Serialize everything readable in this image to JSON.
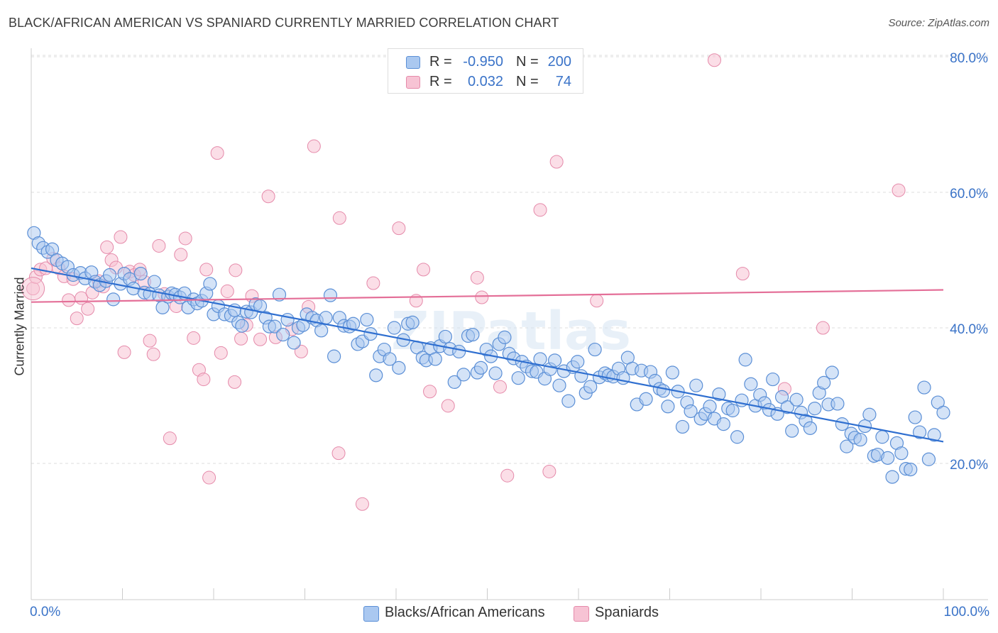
{
  "title": "BLACK/AFRICAN AMERICAN VS SPANIARD CURRENTLY MARRIED CORRELATION CHART",
  "source": "Source: ZipAtlas.com",
  "watermark": "ZIPatlas",
  "legend": {
    "rows": [
      {
        "r_label": "R =",
        "r_value": "-0.950",
        "n_label": "N =",
        "n_value": "200"
      },
      {
        "r_label": "R =",
        "r_value": "0.032",
        "n_label": "N =",
        "n_value": "74"
      }
    ]
  },
  "bottom_legend": [
    "Blacks/African Americans",
    "Spaniards"
  ],
  "x_tick_min": "0.0%",
  "x_tick_max": "100.0%",
  "colors": {
    "blue_fill": "#aac8f0",
    "blue_stroke": "#5b8fd6",
    "blue_line": "#2f6fd0",
    "pink_fill": "#f7c3d4",
    "pink_stroke": "#e58aaa",
    "pink_line": "#e46f98",
    "axis_text": "#3a73c8",
    "grid": "#dddddd"
  },
  "chart_data": {
    "type": "scatter",
    "title": "BLACK/AFRICAN AMERICAN VS SPANIARD CURRENTLY MARRIED CORRELATION CHART",
    "xlabel": "",
    "ylabel": "Currently Married",
    "xlim": [
      0,
      100
    ],
    "ylim": [
      0,
      85
    ],
    "y_ticks": [
      20,
      40,
      60,
      80
    ],
    "y_tick_labels": [
      "20.0%",
      "40.0%",
      "60.0%",
      "80.0%"
    ],
    "x_tick_labels": [
      "0.0%",
      "100.0%"
    ],
    "grid": true,
    "legend_position": "top-center",
    "series": [
      {
        "name": "Blacks/African Americans",
        "r": -0.95,
        "n": 200,
        "trend": {
          "x": [
            0,
            100
          ],
          "y": [
            48.8,
            23.2
          ]
        },
        "points": [
          [
            0.3,
            54.0
          ],
          [
            0.8,
            52.5
          ],
          [
            1.3,
            51.8
          ],
          [
            1.8,
            51.2
          ],
          [
            2.3,
            51.6
          ],
          [
            2.8,
            50.0
          ],
          [
            3.4,
            49.5
          ],
          [
            4.0,
            49.0
          ],
          [
            4.6,
            47.8
          ],
          [
            5.4,
            48.1
          ],
          [
            5.9,
            47.3
          ],
          [
            6.6,
            48.2
          ],
          [
            7.0,
            46.8
          ],
          [
            7.5,
            46.3
          ],
          [
            8.2,
            46.9
          ],
          [
            8.6,
            47.8
          ],
          [
            9.0,
            44.2
          ],
          [
            9.8,
            46.5
          ],
          [
            10.2,
            48.0
          ],
          [
            10.8,
            47.2
          ],
          [
            11.2,
            45.8
          ],
          [
            12.0,
            48.0
          ],
          [
            12.4,
            45.2
          ],
          [
            13.0,
            45.0
          ],
          [
            13.5,
            46.8
          ],
          [
            14.0,
            44.8
          ],
          [
            14.4,
            43.0
          ],
          [
            15.0,
            44.6
          ],
          [
            15.4,
            45.1
          ],
          [
            15.8,
            44.9
          ],
          [
            16.3,
            44.5
          ],
          [
            16.8,
            45.1
          ],
          [
            17.2,
            43.0
          ],
          [
            17.8,
            44.2
          ],
          [
            18.2,
            43.6
          ],
          [
            18.7,
            44.0
          ],
          [
            19.2,
            45.1
          ],
          [
            19.6,
            46.5
          ],
          [
            20.0,
            42.0
          ],
          [
            20.5,
            43.2
          ],
          [
            21.2,
            42.0
          ],
          [
            21.9,
            41.8
          ],
          [
            22.3,
            42.6
          ],
          [
            22.7,
            40.8
          ],
          [
            23.1,
            40.3
          ],
          [
            23.6,
            42.4
          ],
          [
            24.1,
            42.3
          ],
          [
            24.6,
            43.5
          ],
          [
            25.1,
            43.2
          ],
          [
            25.7,
            41.5
          ],
          [
            26.1,
            40.2
          ],
          [
            26.7,
            40.2
          ],
          [
            27.2,
            44.9
          ],
          [
            27.6,
            39.0
          ],
          [
            28.1,
            41.2
          ],
          [
            28.8,
            37.8
          ],
          [
            29.3,
            40.0
          ],
          [
            29.8,
            40.4
          ],
          [
            30.2,
            42.0
          ],
          [
            30.8,
            41.5
          ],
          [
            31.3,
            41.1
          ],
          [
            31.8,
            39.6
          ],
          [
            32.3,
            41.5
          ],
          [
            32.8,
            44.8
          ],
          [
            33.2,
            35.8
          ],
          [
            33.8,
            41.5
          ],
          [
            34.3,
            40.3
          ],
          [
            34.9,
            40.2
          ],
          [
            35.3,
            40.6
          ],
          [
            35.8,
            37.6
          ],
          [
            36.3,
            38.0
          ],
          [
            36.8,
            41.2
          ],
          [
            37.2,
            39.1
          ],
          [
            37.8,
            33.0
          ],
          [
            38.2,
            35.8
          ],
          [
            38.7,
            36.8
          ],
          [
            39.3,
            35.4
          ],
          [
            39.8,
            40.0
          ],
          [
            40.3,
            34.1
          ],
          [
            40.8,
            38.2
          ],
          [
            41.3,
            40.6
          ],
          [
            41.8,
            40.8
          ],
          [
            42.3,
            37.1
          ],
          [
            42.9,
            35.6
          ],
          [
            43.3,
            35.2
          ],
          [
            43.8,
            37.0
          ],
          [
            44.3,
            35.4
          ],
          [
            44.8,
            37.3
          ],
          [
            45.4,
            38.7
          ],
          [
            45.9,
            36.9
          ],
          [
            46.4,
            32.0
          ],
          [
            46.9,
            36.5
          ],
          [
            47.4,
            33.1
          ],
          [
            47.9,
            38.8
          ],
          [
            48.4,
            39.0
          ],
          [
            48.9,
            33.4
          ],
          [
            49.3,
            34.1
          ],
          [
            49.9,
            36.8
          ],
          [
            50.4,
            35.8
          ],
          [
            50.9,
            33.3
          ],
          [
            51.3,
            37.6
          ],
          [
            51.9,
            38.6
          ],
          [
            52.4,
            36.2
          ],
          [
            52.9,
            35.5
          ],
          [
            53.4,
            32.6
          ],
          [
            53.8,
            35.0
          ],
          [
            54.3,
            34.3
          ],
          [
            54.9,
            33.6
          ],
          [
            55.4,
            33.5
          ],
          [
            55.8,
            35.4
          ],
          [
            56.3,
            32.5
          ],
          [
            56.9,
            33.9
          ],
          [
            57.4,
            35.2
          ],
          [
            57.9,
            31.5
          ],
          [
            58.4,
            33.6
          ],
          [
            58.9,
            29.2
          ],
          [
            59.4,
            34.2
          ],
          [
            59.9,
            35.0
          ],
          [
            60.3,
            32.9
          ],
          [
            60.8,
            30.4
          ],
          [
            61.3,
            31.3
          ],
          [
            61.8,
            36.8
          ],
          [
            62.3,
            32.7
          ],
          [
            62.9,
            33.3
          ],
          [
            63.3,
            33.0
          ],
          [
            63.8,
            32.8
          ],
          [
            64.4,
            34.0
          ],
          [
            64.9,
            32.6
          ],
          [
            65.4,
            35.6
          ],
          [
            65.9,
            34.0
          ],
          [
            66.4,
            28.7
          ],
          [
            66.9,
            33.7
          ],
          [
            67.4,
            29.5
          ],
          [
            67.9,
            33.5
          ],
          [
            68.4,
            32.2
          ],
          [
            68.9,
            31.0
          ],
          [
            69.3,
            30.7
          ],
          [
            69.8,
            28.4
          ],
          [
            70.3,
            33.4
          ],
          [
            70.9,
            30.6
          ],
          [
            71.4,
            25.4
          ],
          [
            71.9,
            29.0
          ],
          [
            72.3,
            27.7
          ],
          [
            72.9,
            31.5
          ],
          [
            73.4,
            26.6
          ],
          [
            73.9,
            27.3
          ],
          [
            74.4,
            28.4
          ],
          [
            74.9,
            26.6
          ],
          [
            75.4,
            30.2
          ],
          [
            75.9,
            25.8
          ],
          [
            76.4,
            28.1
          ],
          [
            76.9,
            27.8
          ],
          [
            77.4,
            23.9
          ],
          [
            77.9,
            29.3
          ],
          [
            78.3,
            35.3
          ],
          [
            78.9,
            31.7
          ],
          [
            79.4,
            28.5
          ],
          [
            79.9,
            30.1
          ],
          [
            80.4,
            28.9
          ],
          [
            80.9,
            27.9
          ],
          [
            81.3,
            32.4
          ],
          [
            81.8,
            27.3
          ],
          [
            82.3,
            29.8
          ],
          [
            82.9,
            28.3
          ],
          [
            83.4,
            24.8
          ],
          [
            83.9,
            29.4
          ],
          [
            84.4,
            27.5
          ],
          [
            84.9,
            26.3
          ],
          [
            85.4,
            25.2
          ],
          [
            85.9,
            28.1
          ],
          [
            86.4,
            30.4
          ],
          [
            86.9,
            31.9
          ],
          [
            87.4,
            28.7
          ],
          [
            87.8,
            33.4
          ],
          [
            88.4,
            28.8
          ],
          [
            88.9,
            25.8
          ],
          [
            89.4,
            22.5
          ],
          [
            89.9,
            24.4
          ],
          [
            90.3,
            23.8
          ],
          [
            90.9,
            23.5
          ],
          [
            91.4,
            25.5
          ],
          [
            91.9,
            27.2
          ],
          [
            92.4,
            21.1
          ],
          [
            92.8,
            21.3
          ],
          [
            93.3,
            23.9
          ],
          [
            93.9,
            20.8
          ],
          [
            94.4,
            18.0
          ],
          [
            94.9,
            23.0
          ],
          [
            95.4,
            21.5
          ],
          [
            95.9,
            19.2
          ],
          [
            96.4,
            19.1
          ],
          [
            96.9,
            26.8
          ],
          [
            97.4,
            24.6
          ],
          [
            97.9,
            31.2
          ],
          [
            98.4,
            20.6
          ],
          [
            99.0,
            24.2
          ],
          [
            99.4,
            29.0
          ],
          [
            100.0,
            27.5
          ]
        ]
      },
      {
        "name": "Spaniards",
        "r": 0.032,
        "n": 74,
        "trend": {
          "x": [
            0,
            100
          ],
          "y": [
            43.8,
            45.6
          ]
        },
        "points": [
          [
            0.2,
            45.8
          ],
          [
            0.5,
            47.5
          ],
          [
            1.0,
            48.6
          ],
          [
            1.6,
            48.8
          ],
          [
            2.4,
            50.2
          ],
          [
            3.0,
            48.8
          ],
          [
            3.6,
            47.6
          ],
          [
            4.1,
            44.1
          ],
          [
            4.6,
            47.2
          ],
          [
            5.0,
            41.4
          ],
          [
            5.5,
            44.4
          ],
          [
            6.2,
            42.8
          ],
          [
            6.7,
            45.2
          ],
          [
            7.4,
            46.9
          ],
          [
            7.9,
            46.1
          ],
          [
            8.3,
            51.9
          ],
          [
            8.8,
            50.0
          ],
          [
            9.3,
            48.9
          ],
          [
            9.8,
            53.4
          ],
          [
            10.2,
            36.4
          ],
          [
            10.8,
            48.3
          ],
          [
            11.3,
            47.8
          ],
          [
            11.9,
            48.6
          ],
          [
            12.4,
            46.8
          ],
          [
            13.0,
            38.1
          ],
          [
            13.4,
            36.1
          ],
          [
            14.0,
            52.1
          ],
          [
            14.6,
            45.0
          ],
          [
            15.2,
            23.7
          ],
          [
            15.9,
            43.2
          ],
          [
            16.4,
            50.8
          ],
          [
            16.9,
            53.2
          ],
          [
            17.8,
            38.5
          ],
          [
            18.4,
            33.8
          ],
          [
            18.9,
            32.4
          ],
          [
            19.2,
            48.6
          ],
          [
            19.5,
            17.9
          ],
          [
            20.4,
            65.8
          ],
          [
            20.8,
            36.3
          ],
          [
            21.5,
            45.4
          ],
          [
            22.3,
            32.0
          ],
          [
            22.4,
            48.5
          ],
          [
            23.0,
            38.4
          ],
          [
            23.6,
            40.4
          ],
          [
            24.2,
            44.7
          ],
          [
            25.1,
            38.3
          ],
          [
            26.0,
            59.4
          ],
          [
            26.8,
            38.6
          ],
          [
            28.6,
            39.8
          ],
          [
            29.6,
            36.5
          ],
          [
            30.4,
            43.1
          ],
          [
            31.0,
            66.8
          ],
          [
            33.7,
            21.5
          ],
          [
            33.8,
            56.2
          ],
          [
            36.3,
            14.0
          ],
          [
            37.5,
            46.6
          ],
          [
            40.3,
            54.7
          ],
          [
            42.2,
            44.0
          ],
          [
            43.0,
            48.6
          ],
          [
            43.7,
            30.6
          ],
          [
            45.7,
            28.5
          ],
          [
            48.9,
            47.4
          ],
          [
            49.4,
            44.5
          ],
          [
            51.4,
            31.3
          ],
          [
            52.2,
            18.2
          ],
          [
            55.8,
            57.4
          ],
          [
            56.8,
            18.8
          ],
          [
            57.6,
            64.5
          ],
          [
            62.0,
            44.0
          ],
          [
            74.9,
            79.5
          ],
          [
            78.0,
            48.0
          ],
          [
            82.6,
            31.0
          ],
          [
            86.8,
            40.0
          ],
          [
            95.1,
            60.3
          ]
        ]
      }
    ]
  }
}
